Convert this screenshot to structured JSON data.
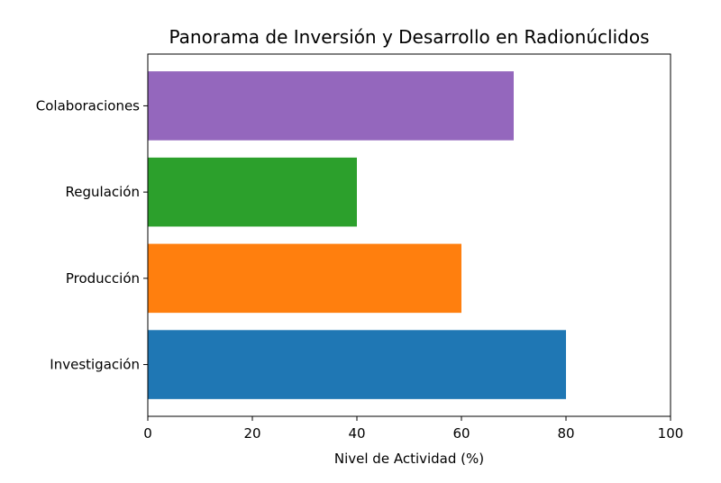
{
  "chart_data": {
    "type": "bar",
    "orientation": "horizontal",
    "title": "Panorama de Inversión y Desarrollo en Radionúclidos",
    "xlabel": "Nivel de Actividad (%)",
    "ylabel": "",
    "categories": [
      "Investigación",
      "Producción",
      "Regulación",
      "Colaboraciones"
    ],
    "values": [
      80,
      60,
      40,
      70
    ],
    "colors": [
      "#1f77b4",
      "#ff7f0e",
      "#2ca02c",
      "#9467bd"
    ],
    "xlim": [
      0,
      100
    ],
    "xticks": [
      0,
      20,
      40,
      60,
      80,
      100
    ],
    "grid": false,
    "legend": "none"
  }
}
